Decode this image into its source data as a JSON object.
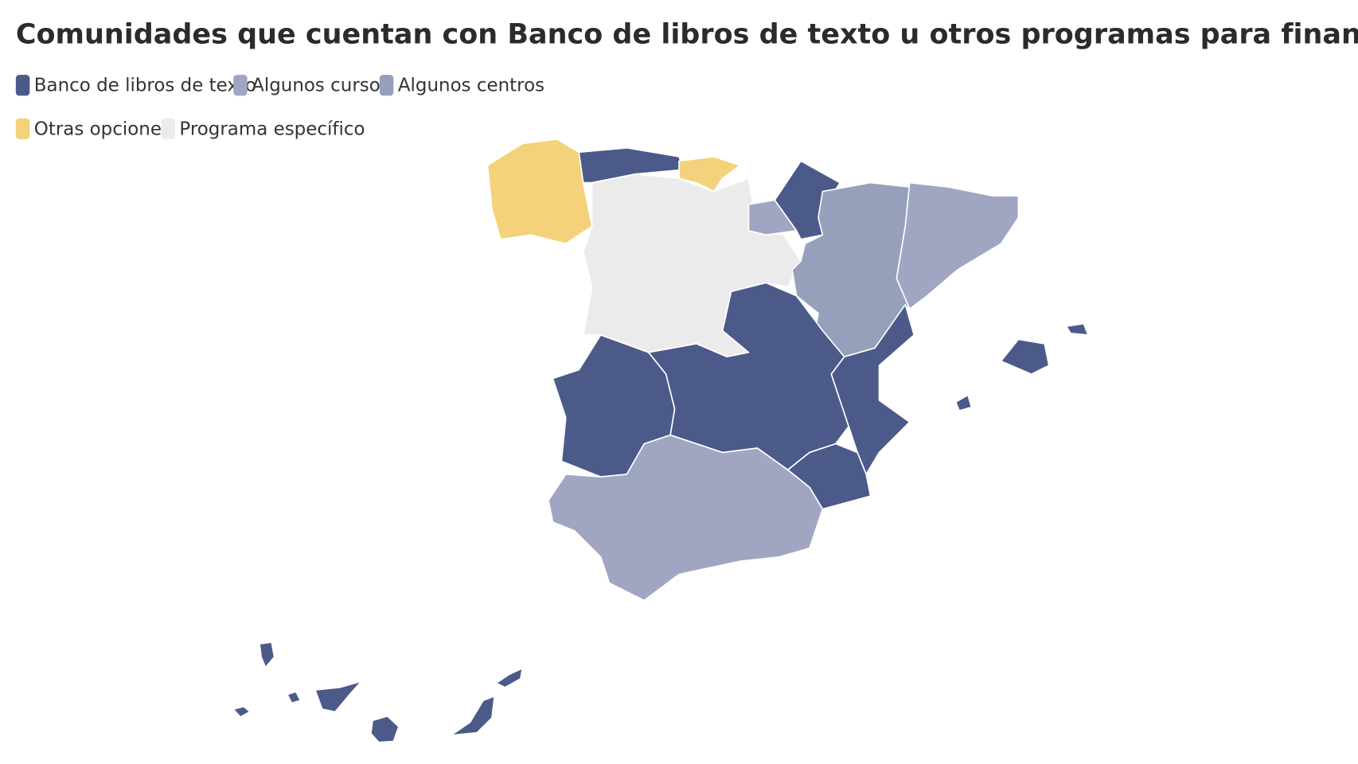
{
  "title": "Comunidades que cuentan con Banco de libros de texto u otros programas para financiarlos",
  "legend": [
    {
      "label": "Banco de libros de texto",
      "color": "#4b5a89"
    },
    {
      "label": "Algunos cursos",
      "color": "#a0a6c2"
    },
    {
      "label": "Algunos centros",
      "color": "#97a0bb"
    },
    {
      "label": "Otras opciones",
      "color": "#f3d27b"
    },
    {
      "label": "Programa específico",
      "color": "#ebebeb"
    }
  ],
  "regions": [
    3,
    0,
    3,
    4,
    1,
    0,
    2,
    1,
    0,
    0,
    0,
    0,
    1,
    0,
    0
  ]
}
